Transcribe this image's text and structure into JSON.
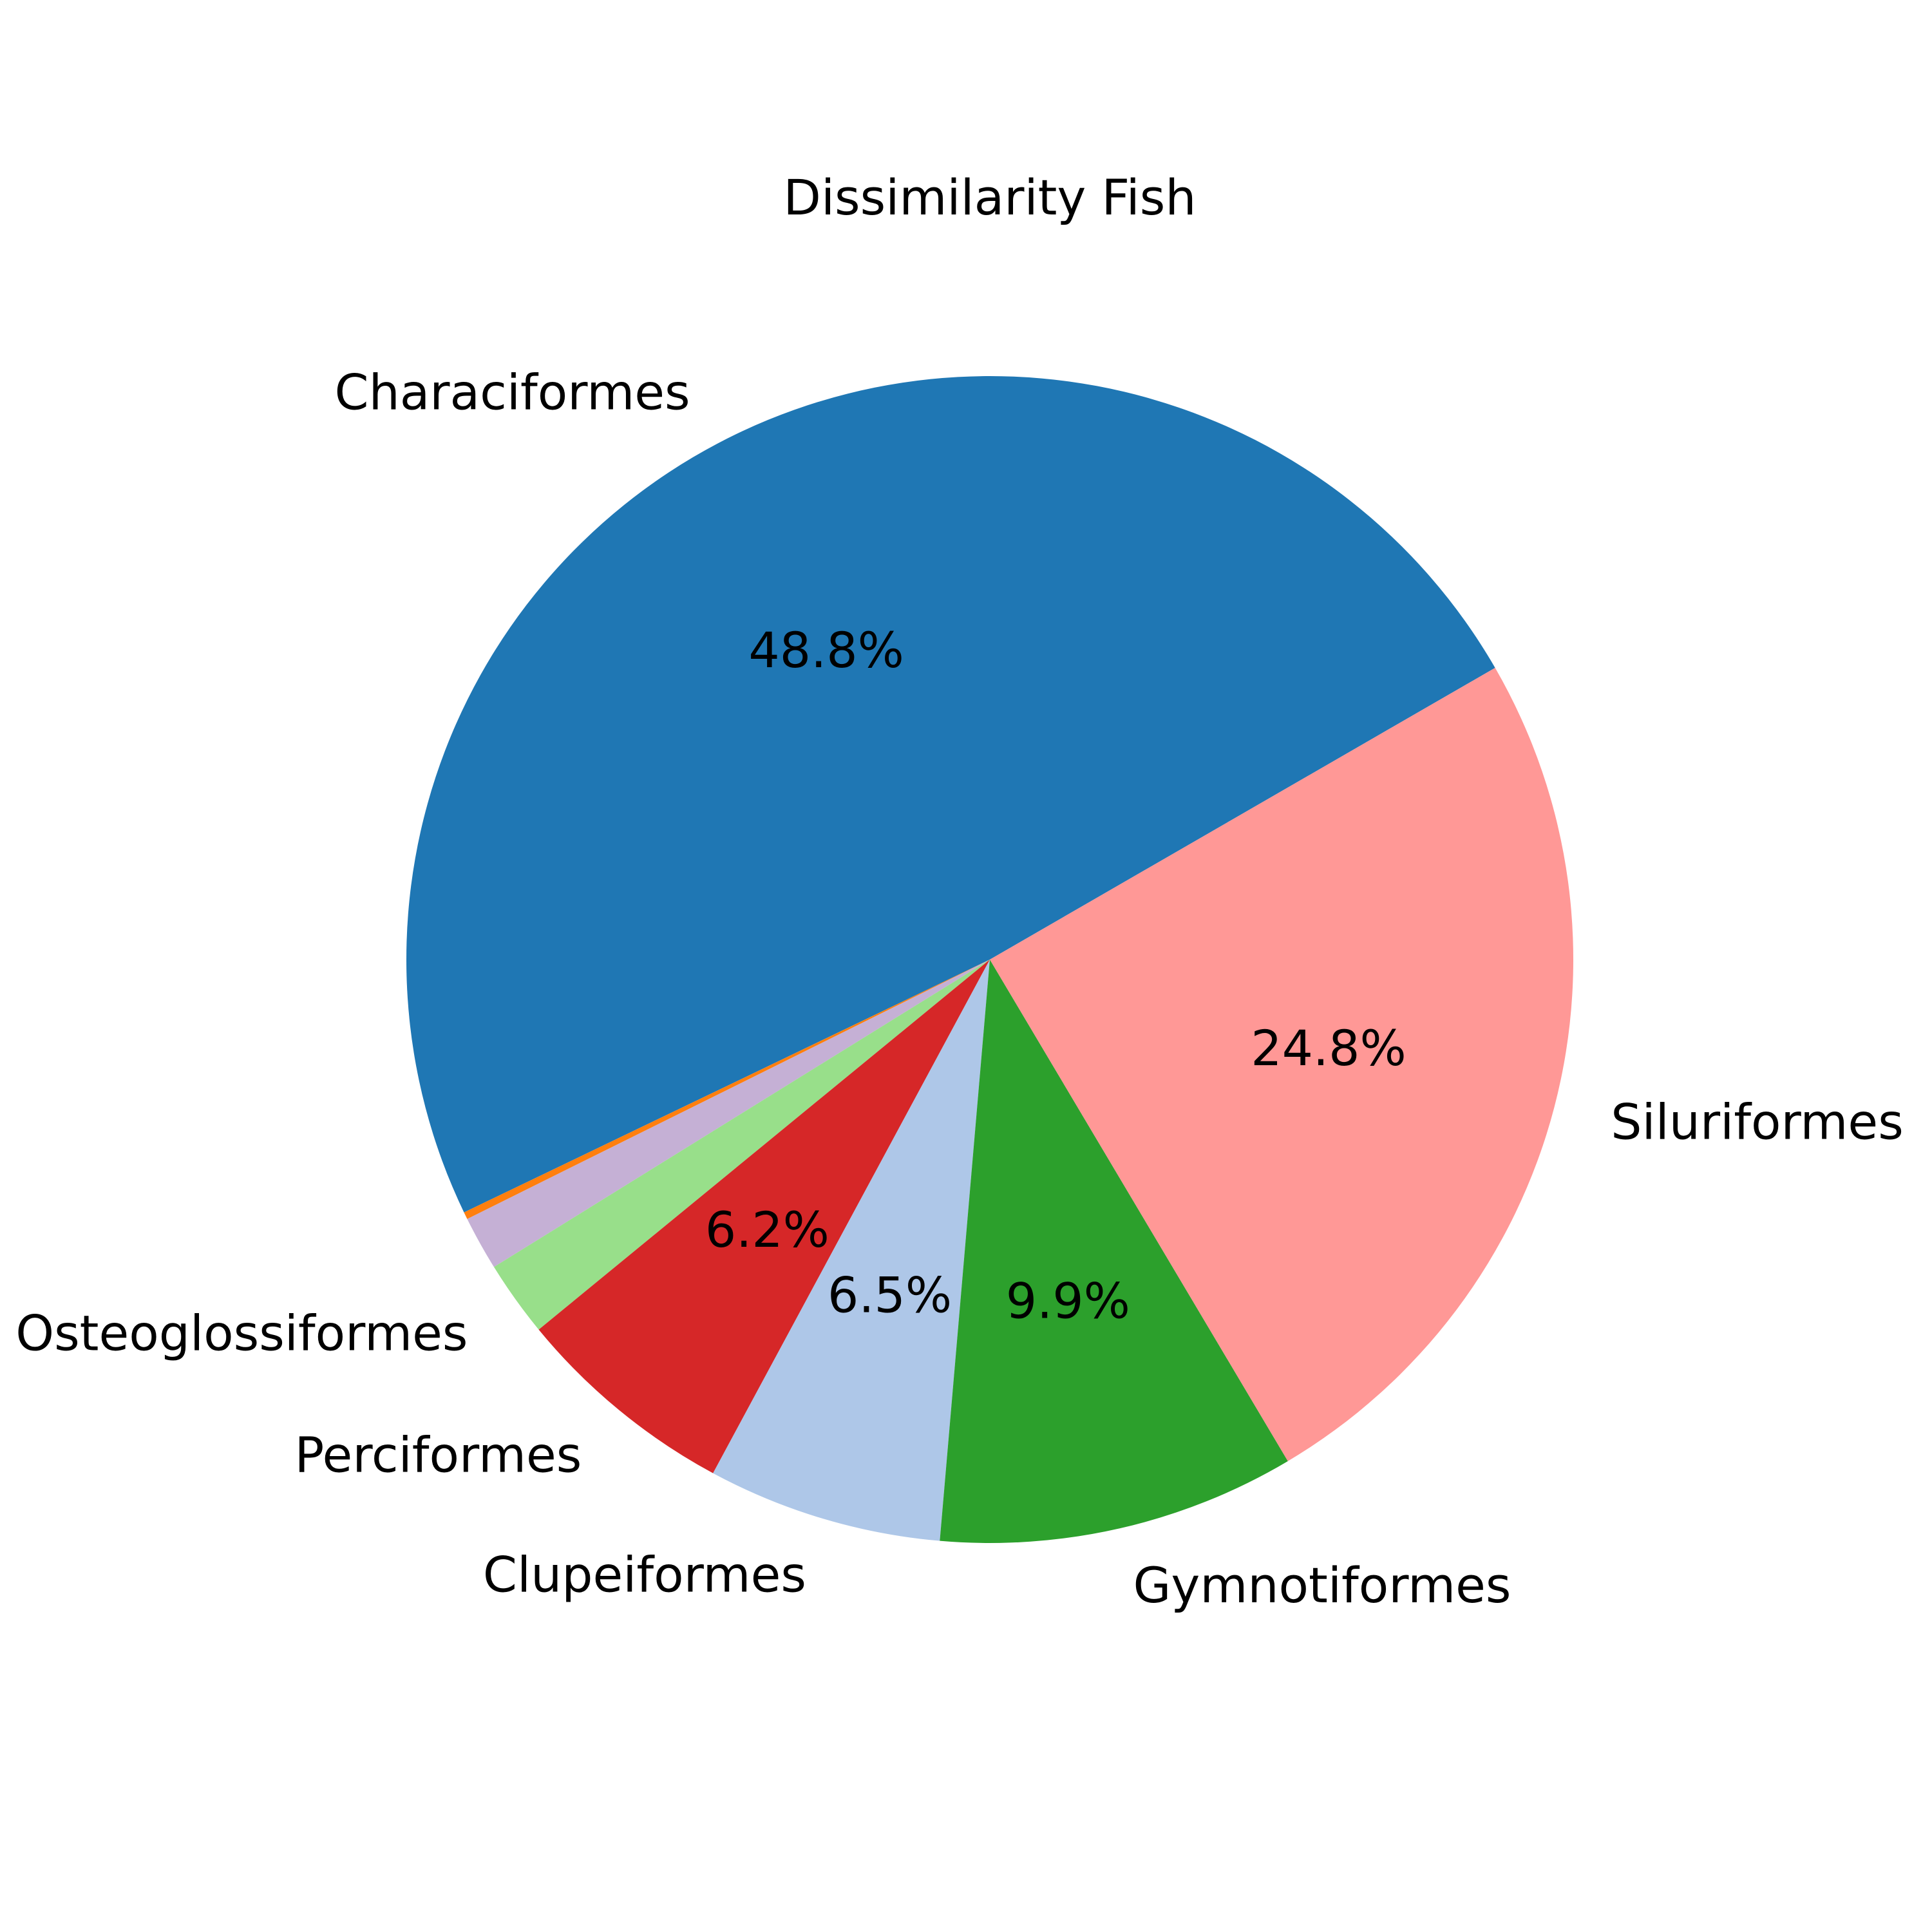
{
  "chart_data": {
    "type": "pie",
    "title": "Dissimilarity Fish",
    "slices": [
      {
        "label": "Characiformes",
        "value": 48.8,
        "pct_label": "48.8%",
        "color": "#1f77b4"
      },
      {
        "label": "",
        "value": 0.2,
        "pct_label": "",
        "color": "#ff7f0e"
      },
      {
        "label": "",
        "value": 1.5,
        "pct_label": "",
        "color": "#c5b0d5"
      },
      {
        "label": "Osteoglossiformes",
        "value": 2.1,
        "pct_label": "",
        "color": "#98df8a"
      },
      {
        "label": "Perciformes",
        "value": 6.2,
        "pct_label": "6.2%",
        "color": "#d62728"
      },
      {
        "label": "Clupeiformes",
        "value": 6.5,
        "pct_label": "6.5%",
        "color": "#aec7e8"
      },
      {
        "label": "Gymnotiformes",
        "value": 9.9,
        "pct_label": "9.9%",
        "color": "#2ca02c"
      },
      {
        "label": "Siluriformes",
        "value": 24.8,
        "pct_label": "24.8%",
        "color": "#ff9896"
      }
    ],
    "start_angle_deg": 30,
    "direction": "counterclockwise",
    "legend": "none"
  }
}
